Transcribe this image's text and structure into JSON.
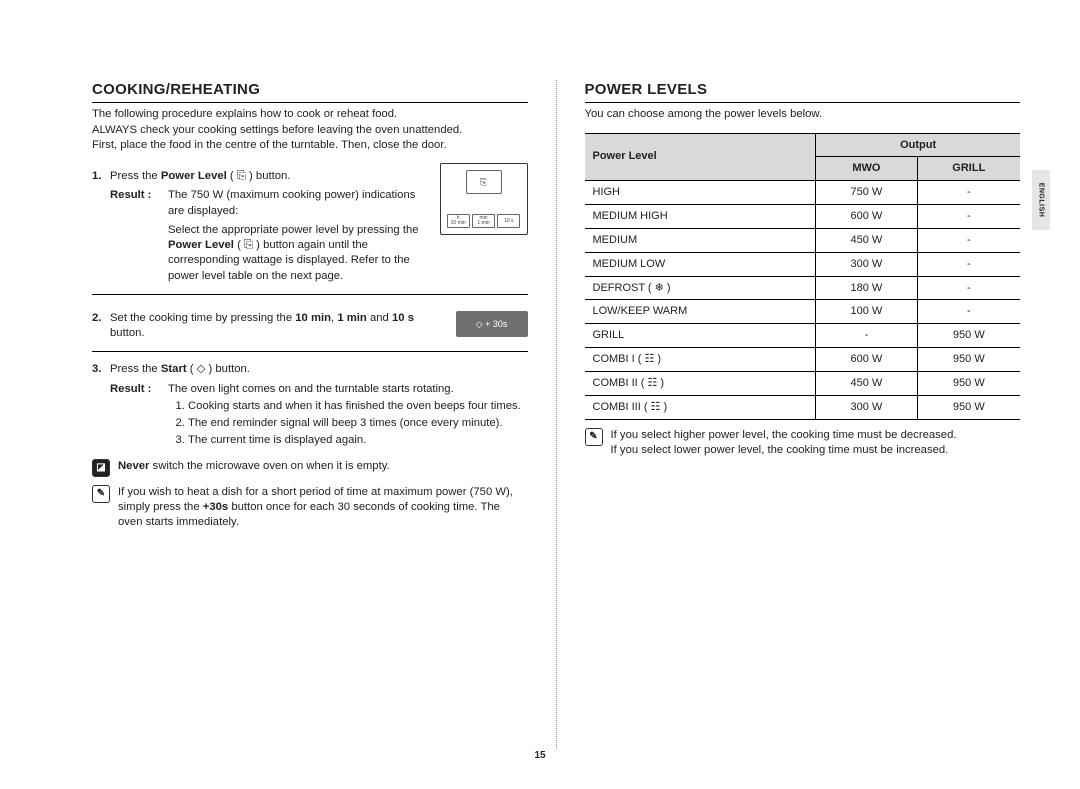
{
  "page_number": "15",
  "language_tab": "ENGLISH",
  "left": {
    "heading": "COOKING/REHEATING",
    "intro": "The following procedure explains how to cook or reheat food.\nALWAYS check your cooking settings before leaving the oven unattended.\nFirst, place the food in the centre of the turntable. Then, close the door.",
    "step1_num": "1.",
    "step1_text_a": "Press the ",
    "step1_text_bold": "Power Level",
    "step1_text_b": " ( ",
    "step1_icon": "⎘",
    "step1_text_c": " ) button.",
    "result_label": "Result :",
    "step1_result_a": "The 750 W (maximum cooking power) indications are displayed:",
    "step1_result_b_a": "Select the appropriate power level by pressing the ",
    "step1_result_b_bold": "Power Level",
    "step1_result_b_b": " ( ",
    "step1_result_b_c": " ) button again until the corresponding wattage is displayed. Refer to the power level table on the next page.",
    "panel_top_label": "⎘",
    "panel_labels": {
      "a1": "h",
      "a2": "10 min",
      "b1": "min",
      "b2": "1 min",
      "c": "10 s"
    },
    "step2_num": "2.",
    "step2_a": "Set the cooking time by pressing the ",
    "step2_b1": "10 min",
    "step2_m": ", ",
    "step2_b2": "1 min",
    "step2_c": " and ",
    "step2_b3": "10 s",
    "step2_d": " button.",
    "plus30_btn": "◇ + 30s",
    "step3_num": "3.",
    "step3_a": "Press the ",
    "step3_bold": "Start",
    "step3_b": " ( ◇ ) button.",
    "step3_result": "The oven light comes on and the turntable starts rotating.",
    "step3_list": [
      "Cooking starts and when it has finished the oven beeps four times.",
      "The end reminder signal will beep 3 times (once every minute).",
      "The current time is displayed again."
    ],
    "warn_icon": "◪",
    "warn_bold": "Never",
    "warn_text": " switch the microwave oven on when it is empty.",
    "note_icon": "✎",
    "note_a": "If you wish to heat a dish for a short period of time at maximum power (750 W), simply press the ",
    "note_bold": "+30s",
    "note_b": " button once for each 30 seconds of cooking time. The oven starts immediately."
  },
  "right": {
    "heading": "POWER LEVELS",
    "intro": "You can choose among the power levels below.",
    "table": {
      "head_power": "Power Level",
      "head_output": "Output",
      "head_mwo": "MWO",
      "head_grill": "GRILL",
      "rows": [
        {
          "name": "HIGH",
          "mwo": "750 W",
          "grill": "-"
        },
        {
          "name": "MEDIUM HIGH",
          "mwo": "600 W",
          "grill": "-"
        },
        {
          "name": "MEDIUM",
          "mwo": "450 W",
          "grill": "-"
        },
        {
          "name": "MEDIUM LOW",
          "mwo": "300 W",
          "grill": "-"
        },
        {
          "name": "DEFROST ( ❄ )",
          "mwo": "180 W",
          "grill": "-"
        },
        {
          "name": "LOW/KEEP WARM",
          "mwo": "100 W",
          "grill": "-"
        },
        {
          "name": "GRILL",
          "mwo": "-",
          "grill": "950 W"
        },
        {
          "name": "COMBI I ( ☷ )",
          "mwo": "600 W",
          "grill": "950 W"
        },
        {
          "name": "COMBI II ( ☷ )",
          "mwo": "450 W",
          "grill": "950 W"
        },
        {
          "name": "COMBI III ( ☷ )",
          "mwo": "300 W",
          "grill": "950 W"
        }
      ]
    },
    "note_icon": "✎",
    "note_text": "If you select higher power level, the cooking time must be decreased.\nIf you select lower power level, the cooking time must be increased."
  }
}
